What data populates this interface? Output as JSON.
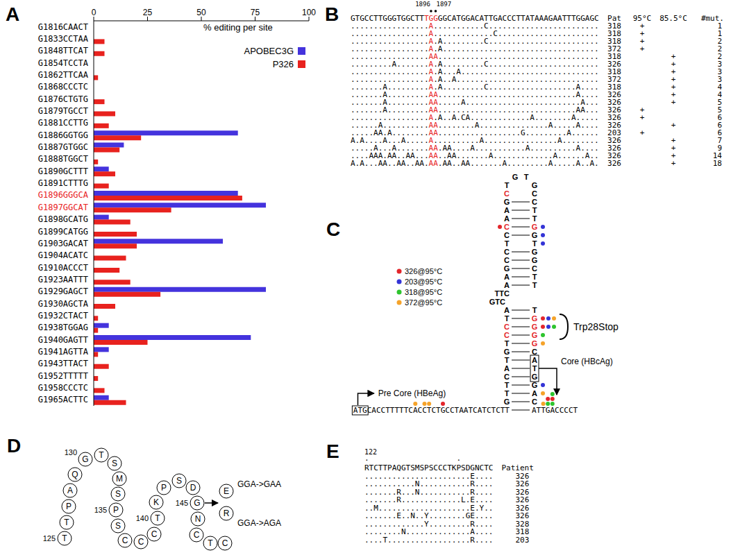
{
  "panel_labels": [
    "A",
    "B",
    "C",
    "D",
    "E"
  ],
  "chart_data": {
    "type": "bar",
    "orientation": "horizontal",
    "x_label": "% editing per site",
    "categories": [
      "G1816CAACT",
      "G1833CCTAA",
      "G1848TTCAT",
      "G1854TCCTA",
      "G1862TTCAA",
      "G1868CCCTC",
      "G1876CTGTG",
      "G1879TGCCT",
      "G1881CCTTG",
      "G1886GGTGG",
      "G1887GTGGC",
      "G1888TGGCT",
      "G1890GCTTT",
      "G1891CTTTG",
      "G1896GGGCA",
      "G1897GGCAT",
      "G1898GCATG",
      "G1899CATGG",
      "G1903GACAT",
      "G1904ACATC",
      "G1910ACCCT",
      "G1923AATTT",
      "G1929GAGCT",
      "G1930AGCTA",
      "G1932CTACT",
      "G1938TGGAG",
      "G1940GAGTT",
      "G1941AGTTA",
      "G1943TTACT",
      "G1952TTTTT",
      "G1958CCCTC",
      "G1965ACTTC"
    ],
    "series": [
      {
        "name": "APOBEC3G",
        "color": "#4433dd",
        "values": [
          0,
          0,
          0,
          0,
          0,
          0,
          0,
          0,
          0,
          67,
          14,
          0,
          7,
          0,
          67,
          80,
          7,
          0,
          60,
          0,
          0,
          0,
          80,
          0,
          0,
          7,
          73,
          7,
          0,
          0,
          0,
          7
        ]
      },
      {
        "name": "P326",
        "color": "#e8221e",
        "values": [
          0,
          5,
          5,
          0,
          2,
          0,
          5,
          10,
          7,
          22,
          12,
          2,
          10,
          7,
          69,
          36,
          17,
          20,
          20,
          15,
          12,
          17,
          31,
          10,
          2,
          2,
          25,
          2,
          7,
          2,
          5,
          15
        ]
      }
    ],
    "xlim": [
      0,
      100
    ],
    "xticks": [
      0,
      25,
      50,
      75,
      100
    ],
    "grid": false,
    "legend": "upper right",
    "highlight": [
      "G1896GGGCA",
      "G1897GGCAT"
    ]
  },
  "B": {
    "marks": [
      "1896",
      "1897"
    ],
    "reference": "GTGCCTTGGGTGGCTTTGGGGCATGGACATTGACCCTTATAAAGAATTTGGAGC",
    "headers": [
      "Pat",
      "95°C",
      "85.5°C",
      "#mut."
    ],
    "plus": "+",
    "rows": [
      {
        "seq": ".................A...........C........................",
        "patient": 318,
        "condition": "95°C",
        "mut": 1
      },
      {
        "seq": ".................A.............C......................",
        "patient": 318,
        "condition": "95°C",
        "mut": 1
      },
      {
        "seq": ".................A.A.........C........................",
        "patient": 318,
        "condition": "95°C",
        "mut": 2
      },
      {
        "seq": ".................A.A..................................",
        "patient": 372,
        "condition": "95°C",
        "mut": 2
      },
      {
        "seq": ".................AA...................................",
        "patient": 318,
        "condition": "85.5°C",
        "mut": 2
      },
      {
        "seq": ".........A.......A.A.........C........................",
        "patient": 326,
        "condition": "85.5°C",
        "mut": 3
      },
      {
        "seq": ".................A.A...A..............................",
        "patient": 318,
        "condition": "85.5°C",
        "mut": 3
      },
      {
        "seq": ".................A.A..A...............................",
        "patient": 372,
        "condition": "85.5°C",
        "mut": 3
      },
      {
        "seq": ".......A.........A.A.........C...................A....",
        "patient": 318,
        "condition": "85.5°C",
        "mut": 4
      },
      {
        "seq": ".......A.........AA..............................A....",
        "patient": 326,
        "condition": "85.5°C",
        "mut": 4
      },
      {
        "seq": ".......A.........AA.....A.........................A...",
        "patient": 326,
        "condition": "85.5°C",
        "mut": 5
      },
      {
        "seq": ".......A.........AA..............................AA...",
        "patient": 326,
        "condition": "95°C",
        "mut": 5
      },
      {
        "seq": ".................A.A..A.CA.............A........A.....",
        "patient": 326,
        "condition": "95°C",
        "mut": 6
      },
      {
        "seq": "......A..........AA........A...............A.....A....",
        "patient": 326,
        "condition": "85.5°C",
        "mut": 6
      },
      {
        "seq": ".....AA.A........AA..................G.........A......",
        "patient": 203,
        "condition": "95°C",
        "mut": 6
      },
      {
        "seq": "A.A....A...A.....A..........A................A........",
        "patient": 326,
        "condition": "85.5°C",
        "mut": 7
      },
      {
        "seq": ".....A...A.......AA.AA....A...........A..........A....",
        "patient": 326,
        "condition": "85.5°C",
        "mut": 9
      },
      {
        "seq": "....AAA.AA..AA...AA..AA.......A.............A......A..",
        "patient": 326,
        "condition": "85.5°C",
        "mut": 14
      },
      {
        "seq": "A.A...AA..AA..AA.AA.AA..AA.......A.........A.....A..A.",
        "patient": 326,
        "condition": "85.5°C",
        "mut": 18
      }
    ]
  },
  "C": {
    "legend": [
      {
        "label": "326@95°C",
        "color": "#e3262b"
      },
      {
        "label": "203@95°C",
        "color": "#3434d6"
      },
      {
        "label": "318@95°C",
        "color": "#2ec42e"
      },
      {
        "label": "372@95°C",
        "color": "#f5a32a"
      }
    ],
    "stop": "Trp28Stop",
    "core": "Core (HBcAg)",
    "precore": "Pre Core (HBeAg)",
    "stem": [
      {
        "l": "G",
        "r": "T"
      },
      {
        "l": "T",
        "r": "G"
      },
      {
        "l": "C",
        "r": "C",
        "lc": "#e3262b"
      },
      {
        "l": "G",
        "r": "C",
        "pair": true
      },
      {
        "l": "A",
        "r": "T",
        "pair": true
      },
      {
        "l": "A",
        "r": "T",
        "pair": true
      },
      {
        "l": "C",
        "r": "G",
        "pair": true,
        "lc": "#e3262b",
        "rc": "#e3262b",
        "ld": [
          "#e3262b"
        ],
        "rd": [
          "#3434d6"
        ]
      },
      {
        "l": "C",
        "r": "G",
        "pair": true,
        "rd": [
          "#3434d6"
        ]
      },
      {
        "l": "T",
        "r": "T",
        "rd": [
          "#3434d6"
        ]
      },
      {
        "l": "C",
        "r": "G",
        "pair": true
      },
      {
        "l": "C",
        "r": "G",
        "pair": true
      },
      {
        "l": "G",
        "r": "C",
        "pair": true
      },
      {
        "l": "A",
        "r": "T",
        "pair": true
      },
      {
        "l": "A",
        "r": "T",
        "pair": true
      },
      {
        "l": "TTC"
      },
      {
        "l": "GTC"
      },
      {
        "l": "A",
        "r": "T",
        "pair": true
      },
      {
        "l": "T",
        "r": "G",
        "pair": true,
        "rc": "#e3262b",
        "rd": [
          "#e3262b",
          "#3434d6",
          "#f5a32a"
        ],
        "bracket": true
      },
      {
        "l": "C",
        "r": "G",
        "pair": true,
        "lc": "#e3262b",
        "rc": "#e3262b",
        "rd": [
          "#e3262b",
          "#3434d6",
          "#2ec42e"
        ],
        "bracket": true
      },
      {
        "l": "C",
        "r": "G",
        "pair": true,
        "lc": "#e3262b",
        "rc": "#e3262b",
        "rd": [
          "#2ec42e"
        ],
        "bracket": true
      },
      {
        "l": "T",
        "r": "G",
        "pair": true,
        "rc": "#e3262b",
        "rd": [
          "#f5a32a"
        ]
      },
      {
        "l": "G",
        "r": "C",
        "pair": true
      },
      {
        "l": "T",
        "r": "A",
        "pair": true,
        "box": true
      },
      {
        "l": "A",
        "r": "T",
        "pair": true,
        "box": true
      },
      {
        "l": "C",
        "r": "G",
        "pair": true,
        "box": true
      },
      {
        "l": "T",
        "r": "G",
        "pair": true,
        "rd": [
          "#3434d6"
        ]
      },
      {
        "l": "T",
        "r": "A",
        "pair": true,
        "rd": [
          "#f5a32a"
        ]
      },
      {
        "l": "G",
        "r": "C",
        "pair": true
      }
    ],
    "bottom_left": [
      {
        "text": "ATG",
        "box": true
      },
      {
        "text": "CACCTTTTTC"
      },
      {
        "text": "A",
        "dots": [
          "#f5a32a"
        ]
      },
      {
        "text": "C"
      },
      {
        "text": "C",
        "dots": [
          "#f5a32a"
        ]
      },
      {
        "text": "T",
        "dots": [
          "#f5a32a"
        ]
      },
      {
        "text": "CT"
      },
      {
        "text": "G",
        "dots": [
          "#e3262b"
        ]
      },
      {
        "text": "CCTAATCATCTCTT"
      }
    ],
    "bottom_right": [
      {
        "text": "AT"
      },
      {
        "text": "T",
        "dots": [
          "#f5a32a"
        ]
      },
      {
        "text": "G",
        "dots": [
          "#2ec42e",
          "#e3262b"
        ]
      },
      {
        "text": "A",
        "dots": [
          "#2ec42e",
          "#e3262b",
          "#2ec42e"
        ]
      },
      {
        "text": "CCCCT"
      }
    ]
  },
  "D": {
    "residues": "TTPAQGTSMSPSCCCTKPSDGNCTC",
    "numbered": [
      125,
      130,
      135,
      140,
      145
    ],
    "site": 145,
    "variants": [
      {
        "residue": "E",
        "codon": "GGA->GAA"
      },
      {
        "residue": "R",
        "codon": "GGA->AGA"
      }
    ]
  },
  "E": {
    "start": "122",
    "ruler": ".                   .",
    "reference": "RTCTTPAQGTSMSPSCCCTKPSDGNCTC",
    "header": "Patient",
    "rows": [
      {
        "seq": ".......................E....",
        "patient": 326
      },
      {
        "seq": "...........N...........R....",
        "patient": 326
      },
      {
        "seq": ".......R...N...........R....",
        "patient": 326
      },
      {
        "seq": ".......R.............L.E....",
        "patient": 326
      },
      {
        "seq": "..M....................E.Y..",
        "patient": 326
      },
      {
        "seq": ".......E..N..Y........GE....",
        "patient": 326
      },
      {
        "seq": ".............Y.........R....",
        "patient": 328
      },
      {
        "seq": "........N..............A....",
        "patient": 318
      },
      {
        "seq": "....T..................R....",
        "patient": 203
      }
    ]
  }
}
